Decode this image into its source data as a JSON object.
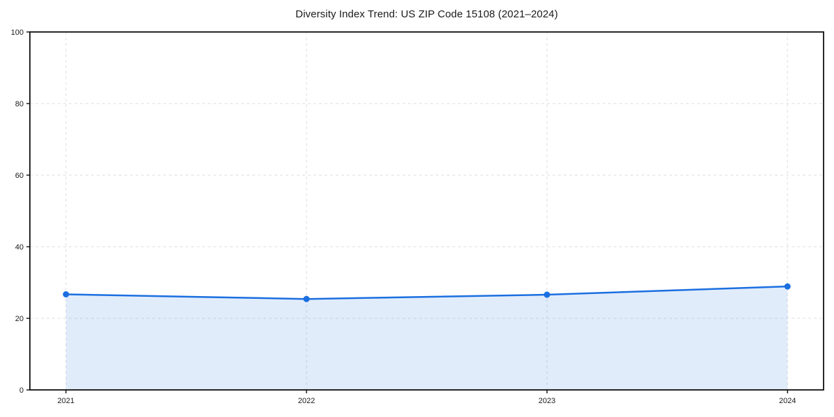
{
  "page": {
    "background": "#ffffff"
  },
  "chart_data": {
    "type": "line",
    "title": "Diversity Index Trend: US ZIP Code 15108 (2021–2024)",
    "x": [
      2021,
      2022,
      2023,
      2024
    ],
    "x_tick_labels": [
      "2021",
      "2022",
      "2023",
      "2024"
    ],
    "series": [
      {
        "name": "Diversity Index",
        "values": [
          26.7,
          25.4,
          26.6,
          28.9
        ]
      }
    ],
    "xlabel": "",
    "ylabel": "",
    "ylim": [
      0,
      100
    ],
    "yticks": [
      0,
      20,
      40,
      60,
      80,
      100
    ],
    "x_margin_frac": 0.05,
    "grid": "dashed",
    "area_fill": true,
    "legend_position": "none",
    "colors": {
      "line": "#1b6fe0",
      "marker": "#1b6fe0",
      "area": "rgba(27,111,224,0.13)",
      "grid": "#dedede",
      "spine": "#111111",
      "tick_text": "#1a1a1a",
      "background": "#ffffff"
    }
  }
}
